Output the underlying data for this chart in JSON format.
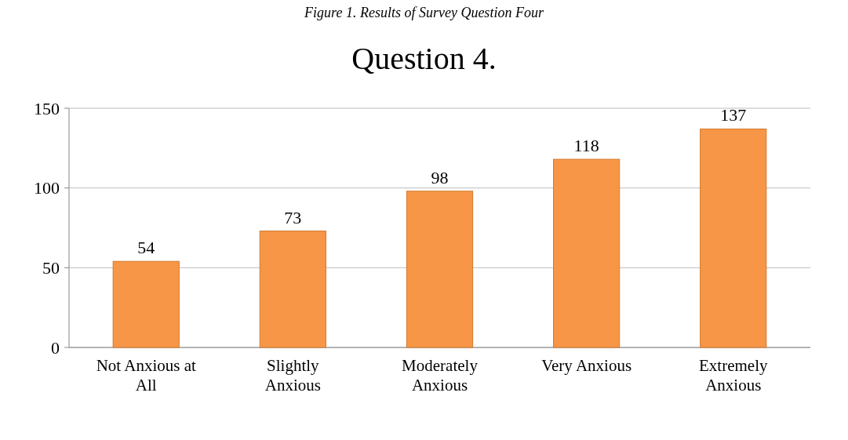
{
  "chart_data": {
    "type": "bar",
    "title": "Question 4.",
    "annotations": [
      "Figure 1. Results of Survey Question Four"
    ],
    "categories": [
      "Not Anxious at All",
      "Slightly Anxious",
      "Moderately Anxious",
      "Very Anxious",
      "Extremely Anxious"
    ],
    "values": [
      54,
      73,
      98,
      118,
      137
    ],
    "color": "#f79646",
    "ylim": [
      0,
      150
    ],
    "yticks": [
      0,
      50,
      100,
      150
    ],
    "grid": "y",
    "data_labels": true
  }
}
